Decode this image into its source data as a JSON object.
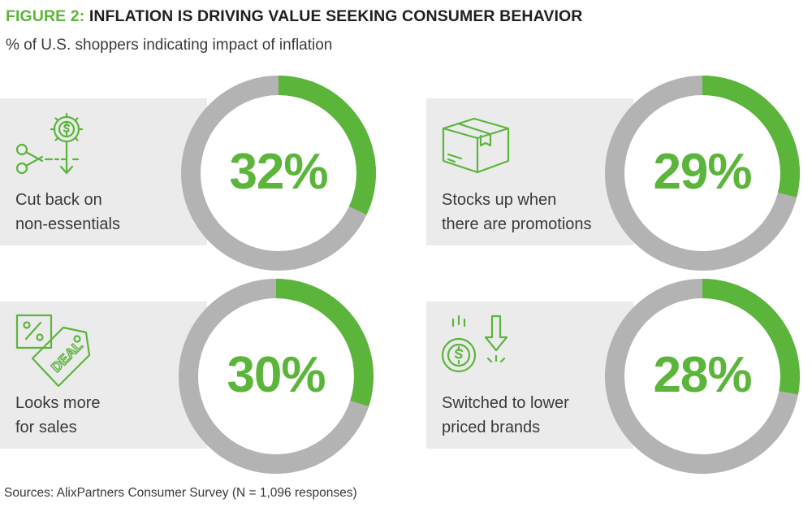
{
  "header": {
    "title_prefix": "FIGURE 2:",
    "title_main": " INFLATION IS DRIVING VALUE SEEKING CONSUMER BEHAVIOR",
    "subtitle": "% of U.S. shoppers indicating impact of inflation"
  },
  "source": "Sources: AlixPartners Consumer Survey (N = 1,096 responses)",
  "colors": {
    "accent": "#5bb53a",
    "ring_track": "#b3b3b3",
    "panel": "#ebebeb",
    "text": "#3a3a3a"
  },
  "chart_data": {
    "type": "pie",
    "title": "FIGURE 2: INFLATION IS DRIVING VALUE SEEKING CONSUMER BEHAVIOR",
    "subtitle": "% of U.S. shoppers indicating impact of inflation",
    "categories": [
      "Cut back on non-essentials",
      "Stocks up when there are promotions",
      "Looks more for sales",
      "Switched to lower priced brands"
    ],
    "values": [
      32,
      29,
      30,
      28
    ],
    "unit": "%",
    "items": [
      {
        "label": "Cut back on\nnon-essentials",
        "value": 32,
        "display": "32%",
        "icon": "scissors-gear-dollar-icon"
      },
      {
        "label": "Stocks up when\nthere are promotions",
        "value": 29,
        "display": "29%",
        "icon": "box-package-icon"
      },
      {
        "label": "Looks more\nfor sales",
        "value": 30,
        "display": "30%",
        "icon": "percent-deal-tag-icon"
      },
      {
        "label": "Switched to lower\npriced brands",
        "value": 28,
        "display": "28%",
        "icon": "coin-down-arrow-icon"
      }
    ]
  }
}
